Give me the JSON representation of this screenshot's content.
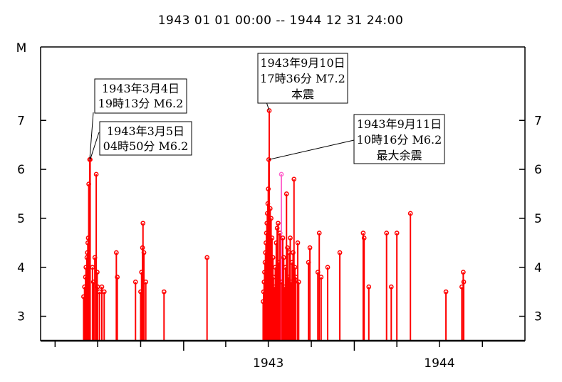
{
  "chart_data": {
    "type": "stem",
    "title": "1943 01 01 00:00 -- 1944 12 31 24:00",
    "ylabel": "M",
    "xlabel": "",
    "x_tick_labels": [
      "1943",
      "1944"
    ],
    "y_ticks": [
      3,
      4,
      5,
      6,
      7
    ],
    "ylim": [
      2.5,
      8.5
    ],
    "xlim": [
      "1942-03-01",
      "1944-12-31"
    ],
    "stem_baseline": 2.5,
    "grid": false,
    "colors": {
      "stem": "#ff0000",
      "highlight": "#ff66cc",
      "axis": "#000000"
    },
    "series": [
      {
        "values": [
          {
            "date": "1942-06-01",
            "m": 3.4
          },
          {
            "date": "1942-06-03",
            "m": 3.6
          },
          {
            "date": "1942-06-05",
            "m": 3.8
          },
          {
            "date": "1942-06-06",
            "m": 4.0
          },
          {
            "date": "1942-06-08",
            "m": 4.2
          },
          {
            "date": "1942-06-09",
            "m": 4.3
          },
          {
            "date": "1942-06-10",
            "m": 4.5
          },
          {
            "date": "1942-06-11",
            "m": 4.6
          },
          {
            "date": "1942-06-12",
            "m": 5.7
          },
          {
            "date": "1942-06-14",
            "m": 6.2
          },
          {
            "date": "1942-06-15",
            "m": 6.2
          },
          {
            "date": "1942-06-20",
            "m": 4.0
          },
          {
            "date": "1942-06-22",
            "m": 3.7
          },
          {
            "date": "1942-06-25",
            "m": 4.2
          },
          {
            "date": "1942-06-28",
            "m": 5.9
          },
          {
            "date": "1942-06-30",
            "m": 3.9
          },
          {
            "date": "1942-07-01",
            "m": 3.6
          },
          {
            "date": "1942-07-05",
            "m": 3.5
          },
          {
            "date": "1942-07-10",
            "m": 3.6
          },
          {
            "date": "1942-07-15",
            "m": 3.5
          },
          {
            "date": "1942-08-10",
            "m": 4.3
          },
          {
            "date": "1942-08-12",
            "m": 3.8
          },
          {
            "date": "1942-09-20",
            "m": 3.7
          },
          {
            "date": "1942-10-01",
            "m": 3.5
          },
          {
            "date": "1942-10-03",
            "m": 3.9
          },
          {
            "date": "1942-10-05",
            "m": 4.4
          },
          {
            "date": "1942-10-06",
            "m": 4.9
          },
          {
            "date": "1942-10-08",
            "m": 4.3
          },
          {
            "date": "1942-10-12",
            "m": 3.7
          },
          {
            "date": "1942-11-20",
            "m": 3.5
          },
          {
            "date": "1943-02-20",
            "m": 4.2
          },
          {
            "date": "1943-06-20",
            "m": 3.3
          },
          {
            "date": "1943-06-21",
            "m": 3.5
          },
          {
            "date": "1943-06-22",
            "m": 3.7
          },
          {
            "date": "1943-06-23",
            "m": 3.9
          },
          {
            "date": "1943-06-24",
            "m": 4.1
          },
          {
            "date": "1943-06-25",
            "m": 4.3
          },
          {
            "date": "1943-06-26",
            "m": 4.5
          },
          {
            "date": "1943-06-27",
            "m": 4.7
          },
          {
            "date": "1943-06-28",
            "m": 4.9
          },
          {
            "date": "1943-06-29",
            "m": 5.1
          },
          {
            "date": "1943-06-30",
            "m": 5.3
          },
          {
            "date": "1943-07-01",
            "m": 5.6
          },
          {
            "date": "1943-07-02",
            "m": 6.2
          },
          {
            "date": "1943-07-03",
            "m": 7.2
          },
          {
            "date": "1943-07-05",
            "m": 5.2
          },
          {
            "date": "1943-07-07",
            "m": 5.0
          },
          {
            "date": "1943-07-09",
            "m": 4.6
          },
          {
            "date": "1943-07-11",
            "m": 4.2
          },
          {
            "date": "1943-07-12",
            "m": 3.8
          },
          {
            "date": "1943-07-14",
            "m": 3.6
          },
          {
            "date": "1943-07-16",
            "m": 4.0
          },
          {
            "date": "1943-07-18",
            "m": 4.5
          },
          {
            "date": "1943-07-20",
            "m": 4.8
          },
          {
            "date": "1943-07-22",
            "m": 4.9
          },
          {
            "date": "1943-07-24",
            "m": 4.1
          },
          {
            "date": "1943-07-26",
            "m": 4.7
          },
          {
            "date": "1943-07-28",
            "m": 3.9
          },
          {
            "date": "1943-07-29",
            "m": 5.9,
            "highlight": true
          },
          {
            "date": "1943-07-30",
            "m": 3.7
          },
          {
            "date": "1943-08-01",
            "m": 4.6
          },
          {
            "date": "1943-08-03",
            "m": 4.2
          },
          {
            "date": "1943-08-05",
            "m": 3.6
          },
          {
            "date": "1943-08-07",
            "m": 4.0
          },
          {
            "date": "1943-08-09",
            "m": 5.5
          },
          {
            "date": "1943-08-11",
            "m": 4.4
          },
          {
            "date": "1943-08-13",
            "m": 3.8
          },
          {
            "date": "1943-08-15",
            "m": 4.3
          },
          {
            "date": "1943-08-17",
            "m": 4.6
          },
          {
            "date": "1943-08-19",
            "m": 3.7
          },
          {
            "date": "1943-08-21",
            "m": 4.1
          },
          {
            "date": "1943-08-23",
            "m": 4.3
          },
          {
            "date": "1943-08-25",
            "m": 5.8
          },
          {
            "date": "1943-08-27",
            "m": 4.0
          },
          {
            "date": "1943-08-29",
            "m": 3.8
          },
          {
            "date": "1943-09-02",
            "m": 4.5
          },
          {
            "date": "1943-09-04",
            "m": 3.7
          },
          {
            "date": "1943-09-25",
            "m": 4.1
          },
          {
            "date": "1943-09-28",
            "m": 4.4
          },
          {
            "date": "1943-10-15",
            "m": 3.9
          },
          {
            "date": "1943-10-18",
            "m": 4.7
          },
          {
            "date": "1943-10-22",
            "m": 3.8
          },
          {
            "date": "1943-11-05",
            "m": 4.0
          },
          {
            "date": "1943-12-01",
            "m": 4.3
          },
          {
            "date": "1944-01-20",
            "m": 4.7
          },
          {
            "date": "1944-01-22",
            "m": 4.6
          },
          {
            "date": "1944-02-01",
            "m": 3.6
          },
          {
            "date": "1944-03-10",
            "m": 4.7
          },
          {
            "date": "1944-03-20",
            "m": 3.6
          },
          {
            "date": "1944-04-01",
            "m": 4.7
          },
          {
            "date": "1944-04-30",
            "m": 5.1
          },
          {
            "date": "1944-07-15",
            "m": 3.5
          },
          {
            "date": "1944-08-18",
            "m": 3.6
          },
          {
            "date": "1944-08-21",
            "m": 3.9
          },
          {
            "date": "1944-08-22",
            "m": 3.7
          }
        ]
      }
    ],
    "annotations": [
      {
        "lines": [
          "1943年3月4日",
          "19時13分 M6.2"
        ],
        "date": "1942-06-14",
        "m": 6.2
      },
      {
        "lines": [
          "1943年3月5日",
          "04時50分 M6.2"
        ],
        "date": "1942-06-15",
        "m": 6.2
      },
      {
        "lines": [
          "1943年9月10日",
          "17時36分 M7.2",
          "本震"
        ],
        "date": "1943-07-03",
        "m": 7.2
      },
      {
        "lines": [
          "1943年9月11日",
          "10時16分 M6.2",
          "最大余震"
        ],
        "date": "1943-07-02",
        "m": 6.2
      }
    ]
  }
}
